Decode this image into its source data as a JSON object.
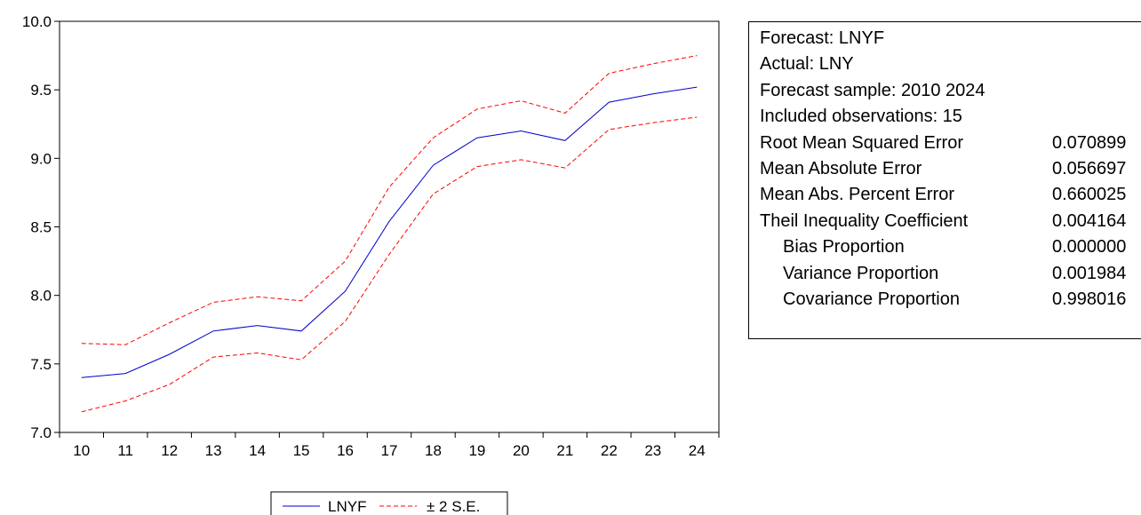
{
  "chart_data": {
    "type": "line",
    "x": [
      "10",
      "11",
      "12",
      "13",
      "14",
      "15",
      "16",
      "17",
      "18",
      "19",
      "20",
      "21",
      "22",
      "23",
      "24"
    ],
    "series": [
      {
        "name": "LNYF",
        "color": "#0000cc",
        "style": "solid",
        "values": [
          7.4,
          7.43,
          7.57,
          7.74,
          7.78,
          7.74,
          8.03,
          8.54,
          8.95,
          9.15,
          9.2,
          9.13,
          9.41,
          9.47,
          9.52
        ]
      },
      {
        "name": "± 2 S.E.",
        "color": "#ff0000",
        "style": "dashed",
        "band": "upper",
        "values": [
          7.65,
          7.64,
          7.8,
          7.95,
          7.99,
          7.96,
          8.25,
          8.79,
          9.15,
          9.36,
          9.42,
          9.33,
          9.62,
          9.69,
          9.75
        ]
      },
      {
        "name": "± 2 S.E.",
        "color": "#ff0000",
        "style": "dashed",
        "band": "lower",
        "values": [
          7.15,
          7.23,
          7.35,
          7.55,
          7.58,
          7.53,
          7.81,
          8.3,
          8.74,
          8.94,
          8.99,
          8.93,
          9.21,
          9.26,
          9.3
        ]
      }
    ],
    "y_ticks": [
      "7.0",
      "7.5",
      "8.0",
      "8.5",
      "9.0",
      "9.5",
      "10.0"
    ],
    "ylim": [
      7.0,
      10.0
    ],
    "grid": false,
    "legend": {
      "position": "bottom-center",
      "entries": [
        "LNYF",
        "± 2 S.E."
      ]
    }
  },
  "stats": [
    {
      "label": "Forecast: LNYF",
      "value": ""
    },
    {
      "label": "Actual: LNY",
      "value": ""
    },
    {
      "label": "Forecast sample: 2010 2024",
      "value": ""
    },
    {
      "label": "Included observations: 15",
      "value": ""
    },
    {
      "label": "Root Mean Squared Error",
      "value": "0.070899"
    },
    {
      "label": "Mean Absolute Error",
      "value": "0.056697"
    },
    {
      "label": "Mean Abs. Percent Error",
      "value": "0.660025"
    },
    {
      "label": "Theil Inequality Coefficient",
      "value": "0.004164"
    },
    {
      "label": "Bias Proportion",
      "value": "0.000000",
      "indent": true
    },
    {
      "label": "Variance Proportion",
      "value": "0.001984",
      "indent": true
    },
    {
      "label": "Covariance Proportion",
      "value": "0.998016",
      "indent": true
    }
  ]
}
